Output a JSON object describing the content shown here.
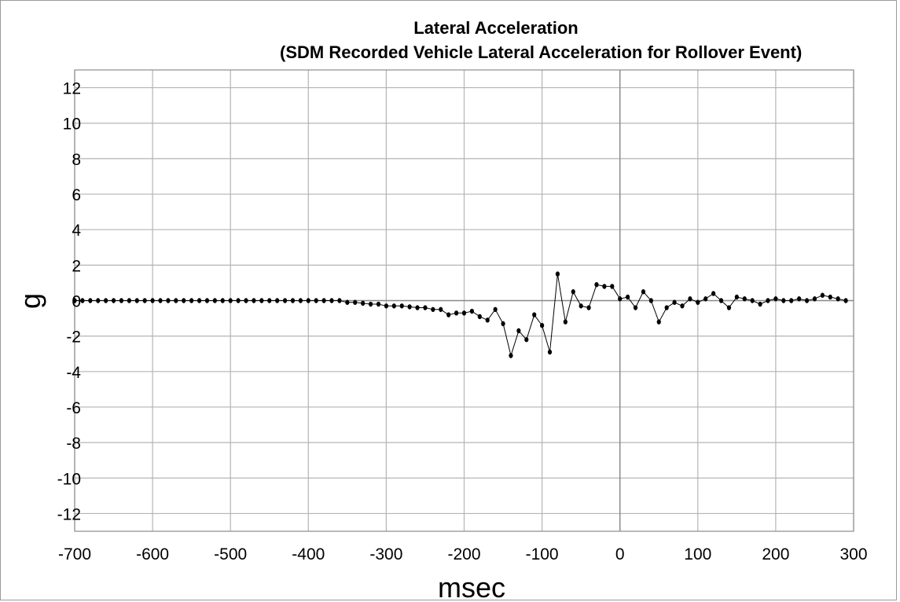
{
  "chart_data": {
    "type": "line",
    "title": "Lateral Acceleration",
    "subtitle": "(SDM Recorded Vehicle Lateral Acceleration for Rollover Event)",
    "xlabel": "msec",
    "ylabel": "g",
    "xlim": [
      -700,
      300
    ],
    "ylim": [
      -13,
      13
    ],
    "x_ticks": [
      -700,
      -600,
      -500,
      -400,
      -300,
      -200,
      -100,
      0,
      100,
      200,
      300
    ],
    "y_ticks": [
      12,
      10,
      8,
      6,
      4,
      2,
      0,
      -2,
      -4,
      -6,
      -8,
      -10,
      -12
    ],
    "grid": true,
    "legend": "none",
    "colors": {
      "line": "#000000",
      "grid": "#b4b4b4",
      "axis": "#8c8c8c"
    },
    "series": [
      {
        "x": [
          -700,
          -690,
          -680,
          -670,
          -660,
          -650,
          -640,
          -630,
          -620,
          -610,
          -600,
          -590,
          -580,
          -570,
          -560,
          -550,
          -540,
          -530,
          -520,
          -510,
          -500,
          -490,
          -480,
          -470,
          -460,
          -450,
          -440,
          -430,
          -420,
          -410,
          -400,
          -390,
          -380,
          -370,
          -360,
          -350,
          -340,
          -330,
          -320,
          -310,
          -300,
          -290,
          -280,
          -270,
          -260,
          -250,
          -240,
          -230,
          -220,
          -210,
          -200,
          -190,
          -180,
          -170,
          -160,
          -150,
          -140,
          -130,
          -120,
          -110,
          -100,
          -90,
          -80,
          -70,
          -60,
          -50,
          -40,
          -30,
          -20,
          -10,
          0,
          10,
          20,
          30,
          40,
          50,
          60,
          70,
          80,
          90,
          100,
          110,
          120,
          130,
          140,
          150,
          160,
          170,
          180,
          190,
          200,
          210,
          220,
          230,
          240,
          250,
          260,
          270,
          280,
          290
        ],
        "y": [
          0,
          0,
          0,
          0,
          0,
          0,
          0,
          0,
          0,
          0,
          0,
          0,
          0,
          0,
          0,
          0,
          0,
          0,
          0,
          0,
          0,
          0,
          0,
          0,
          0,
          0,
          0,
          0,
          0,
          0,
          0,
          0,
          0,
          0,
          0,
          -0.1,
          -0.1,
          -0.15,
          -0.2,
          -0.2,
          -0.3,
          -0.3,
          -0.3,
          -0.35,
          -0.4,
          -0.4,
          -0.5,
          -0.5,
          -0.8,
          -0.7,
          -0.7,
          -0.6,
          -0.9,
          -1.1,
          -0.5,
          -1.3,
          -3.1,
          -1.7,
          -2.2,
          -0.8,
          -1.4,
          -2.9,
          1.5,
          -1.2,
          0.5,
          -0.3,
          -0.4,
          0.9,
          0.8,
          0.8,
          0.1,
          0.2,
          -0.4,
          0.5,
          0.0,
          -1.2,
          -0.4,
          -0.1,
          -0.3,
          0.1,
          -0.1,
          0.1,
          0.4,
          0.0,
          -0.4,
          0.2,
          0.1,
          0.0,
          -0.2,
          0.0,
          0.1,
          0.0,
          0.0,
          0.1,
          0.0,
          0.1,
          0.3,
          0.2,
          0.1,
          0.0
        ]
      }
    ]
  }
}
